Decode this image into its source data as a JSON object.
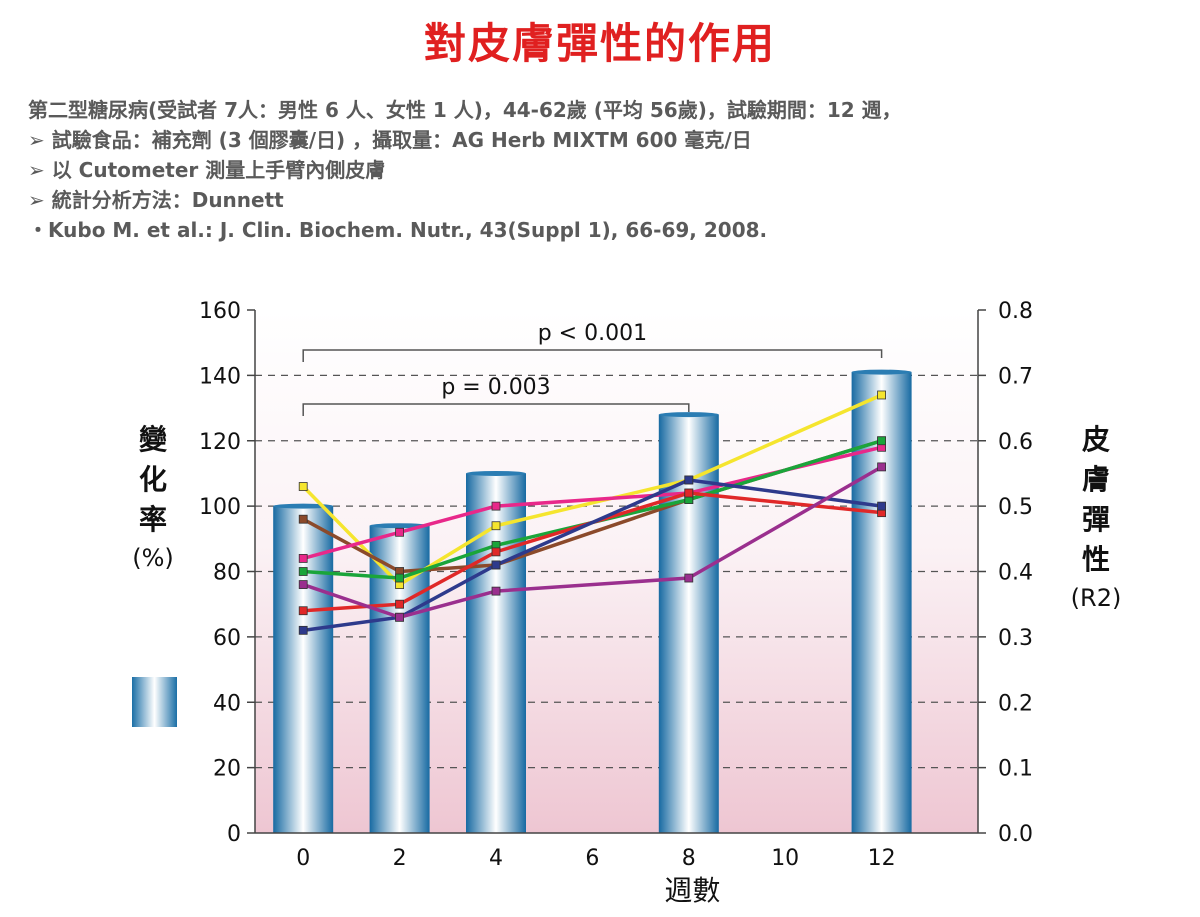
{
  "title": "對皮膚彈性的作用",
  "info": {
    "line1": "第二型糖尿病(受試者 7人：男性 6 人、女性 1 人)，44-62歲 (平均 56歲)，試驗期間：12 週，",
    "line2": "➢ 試驗食品：補充劑 (3 個膠囊/日) ，攝取量：AG Herb MIXTM 600 毫克/日",
    "line3": "➢ 以 Cutometer 測量上手臂內側皮膚",
    "line4": "➢ 統計分析方法：Dunnett",
    "line5": "・Kubo M. et al.: J. Clin. Biochem. Nutr., 43(Suppl 1), 66-69, 2008."
  },
  "axis_labels": {
    "left_main": [
      "變",
      "化",
      "率"
    ],
    "left_unit": "(%)",
    "right_main": [
      "皮",
      "膚",
      "彈",
      "性"
    ],
    "right_unit": "(R2)"
  },
  "chart_data": {
    "type": "bar",
    "xlabel": "週數",
    "x_ticks": [
      "0",
      "2",
      "4",
      "6",
      "8",
      "10",
      "12"
    ],
    "xlim": [
      -1,
      14
    ],
    "left_ylim": [
      0,
      160
    ],
    "left_ticks": [
      "0",
      "20",
      "40",
      "60",
      "80",
      "100",
      "120",
      "140",
      "160"
    ],
    "right_ylim": [
      0.0,
      0.8
    ],
    "right_ticks": [
      "0.0",
      "0.1",
      "0.2",
      "0.3",
      "0.4",
      "0.5",
      "0.6",
      "0.7",
      "0.8"
    ],
    "grid": "dashed horizontal",
    "bars": [
      {
        "x": 0,
        "value": 100
      },
      {
        "x": 2,
        "value": 94
      },
      {
        "x": 4,
        "value": 110
      },
      {
        "x": 8,
        "value": 128
      },
      {
        "x": 12,
        "value": 141
      }
    ],
    "series": [
      {
        "color": "#f5e52e",
        "x": [
          0,
          2,
          4,
          8,
          12
        ],
        "values": [
          0.53,
          0.38,
          0.47,
          0.54,
          0.67
        ]
      },
      {
        "color": "#8b4a2b",
        "x": [
          0,
          2,
          4,
          8,
          12
        ],
        "values": [
          0.48,
          0.4,
          0.41,
          0.51,
          0.6
        ]
      },
      {
        "color": "#e8288a",
        "x": [
          0,
          2,
          4,
          8,
          12
        ],
        "values": [
          0.42,
          0.46,
          0.5,
          0.52,
          0.59
        ]
      },
      {
        "color": "#1aa53a",
        "x": [
          0,
          2,
          4,
          8,
          12
        ],
        "values": [
          0.4,
          0.39,
          0.44,
          0.51,
          0.6
        ]
      },
      {
        "color": "#e02828",
        "x": [
          0,
          2,
          4,
          8,
          12
        ],
        "values": [
          0.34,
          0.35,
          0.43,
          0.52,
          0.49
        ]
      },
      {
        "color": "#2e3a8c",
        "x": [
          0,
          2,
          4,
          8,
          12
        ],
        "values": [
          0.31,
          0.33,
          0.41,
          0.54,
          0.5
        ]
      },
      {
        "color": "#9a2f8e",
        "x": [
          0,
          2,
          4,
          8,
          12
        ],
        "values": [
          0.38,
          0.33,
          0.37,
          0.39,
          0.56
        ]
      }
    ],
    "annotations": [
      {
        "text": "p < 0.001",
        "x_from": 0,
        "x_to": 12
      },
      {
        "text": "p = 0.003",
        "x_from": 0,
        "x_to": 8
      }
    ]
  }
}
